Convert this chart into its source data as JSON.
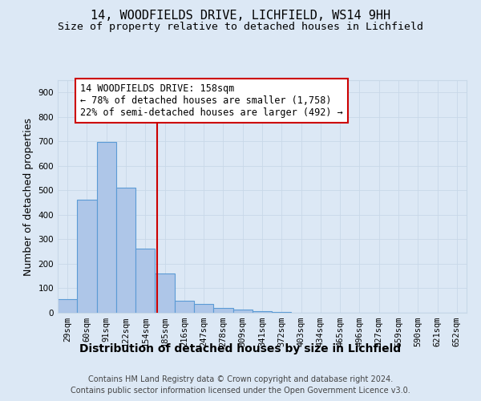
{
  "title": "14, WOODFIELDS DRIVE, LICHFIELD, WS14 9HH",
  "subtitle": "Size of property relative to detached houses in Lichfield",
  "xlabel": "Distribution of detached houses by size in Lichfield",
  "ylabel": "Number of detached properties",
  "footnote1": "Contains HM Land Registry data © Crown copyright and database right 2024.",
  "footnote2": "Contains public sector information licensed under the Open Government Licence v3.0.",
  "bar_labels": [
    "29sqm",
    "60sqm",
    "91sqm",
    "122sqm",
    "154sqm",
    "185sqm",
    "216sqm",
    "247sqm",
    "278sqm",
    "309sqm",
    "341sqm",
    "372sqm",
    "403sqm",
    "434sqm",
    "465sqm",
    "496sqm",
    "527sqm",
    "559sqm",
    "590sqm",
    "621sqm",
    "652sqm"
  ],
  "bar_heights": [
    55,
    463,
    697,
    510,
    263,
    160,
    50,
    35,
    20,
    13,
    5,
    2,
    1,
    0,
    0,
    0,
    0,
    0,
    0,
    0,
    0
  ],
  "bar_color": "#aec6e8",
  "bar_edge_color": "#5b9bd5",
  "bar_edge_width": 0.8,
  "grid_color": "#c8d8e8",
  "bg_color": "#dce8f5",
  "red_line_x": 4.62,
  "red_line_color": "#cc0000",
  "annotation_text": "14 WOODFIELDS DRIVE: 158sqm\n← 78% of detached houses are smaller (1,758)\n22% of semi-detached houses are larger (492) →",
  "annotation_box_color": "#ffffff",
  "annotation_box_edge_color": "#cc0000",
  "ylim": [
    0,
    950
  ],
  "yticks": [
    0,
    100,
    200,
    300,
    400,
    500,
    600,
    700,
    800,
    900
  ],
  "title_fontsize": 11,
  "subtitle_fontsize": 9.5,
  "xlabel_fontsize": 10,
  "ylabel_fontsize": 9,
  "tick_fontsize": 7.5,
  "annotation_fontsize": 8.5,
  "footnote_fontsize": 7
}
